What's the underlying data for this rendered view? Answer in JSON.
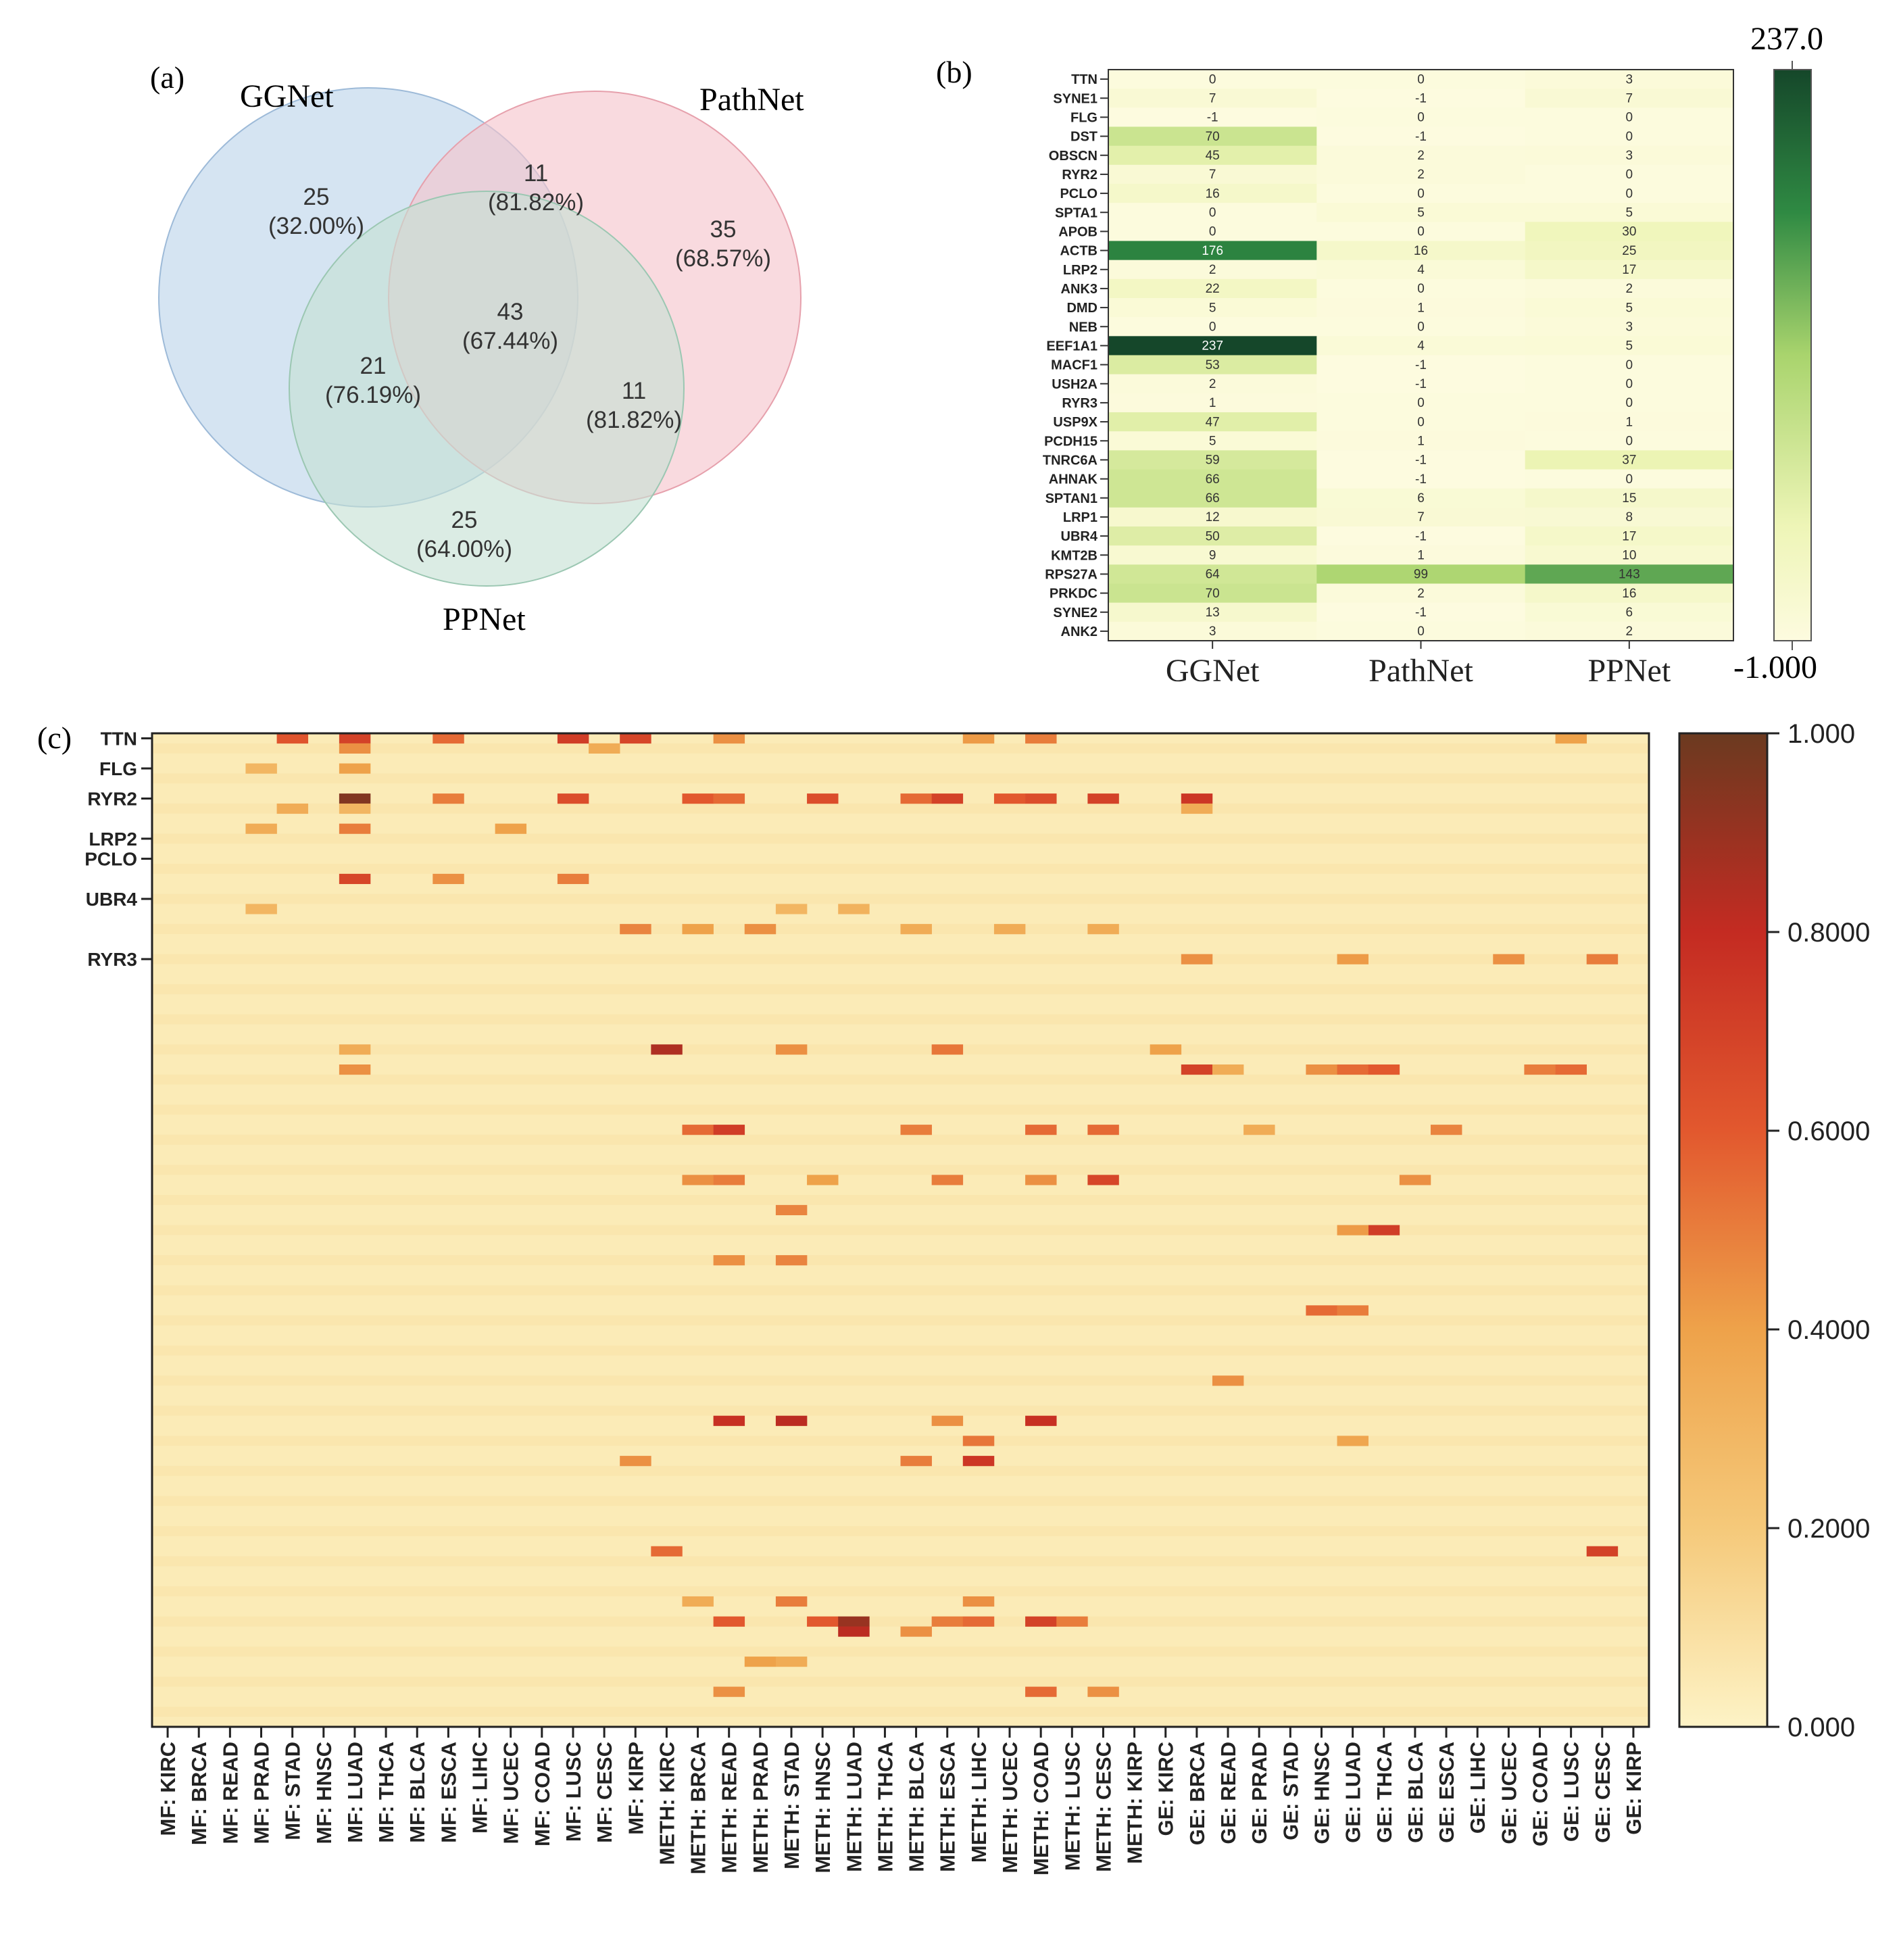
{
  "panels": {
    "a": "(a)",
    "b": "(b)",
    "c": "(c)"
  },
  "chart_data": [
    {
      "type": "venn",
      "sets": [
        {
          "name": "GGNet",
          "color": "#bcd3ea"
        },
        {
          "name": "PathNet",
          "color": "#f5c3cb"
        },
        {
          "name": "PPNet",
          "color": "#c5e0d4"
        }
      ],
      "regions": [
        {
          "count": "25",
          "pct": "(32.00%)"
        },
        {
          "count": "11",
          "pct": "(81.82%)"
        },
        {
          "count": "35",
          "pct": "(68.57%)"
        },
        {
          "count": "43",
          "pct": "(67.44%)"
        },
        {
          "count": "21",
          "pct": "(76.19%)"
        },
        {
          "count": "11",
          "pct": "(81.82%)"
        },
        {
          "count": "25",
          "pct": "(64.00%)"
        }
      ]
    },
    {
      "type": "heatmap",
      "rows": [
        "TTN",
        "SYNE1",
        "FLG",
        "DST",
        "OBSCN",
        "RYR2",
        "PCLO",
        "SPTA1",
        "APOB",
        "ACTB",
        "LRP2",
        "ANK3",
        "DMD",
        "NEB",
        "EEF1A1",
        "MACF1",
        "USH2A",
        "RYR3",
        "USP9X",
        "PCDH15",
        "TNRC6A",
        "AHNAK",
        "SPTAN1",
        "LRP1",
        "UBR4",
        "KMT2B",
        "RPS27A",
        "PRKDC",
        "SYNE2",
        "ANK2"
      ],
      "columns": [
        "GGNet",
        "PathNet",
        "PPNet"
      ],
      "values": [
        [
          0,
          0,
          3
        ],
        [
          7,
          -1,
          7
        ],
        [
          -1,
          0,
          0
        ],
        [
          70,
          -1,
          0
        ],
        [
          45,
          2,
          3
        ],
        [
          7,
          2,
          0
        ],
        [
          16,
          0,
          0
        ],
        [
          0,
          5,
          5
        ],
        [
          0,
          0,
          30
        ],
        [
          176,
          16,
          25
        ],
        [
          2,
          4,
          17
        ],
        [
          22,
          0,
          2
        ],
        [
          5,
          1,
          5
        ],
        [
          0,
          0,
          3
        ],
        [
          237,
          4,
          5
        ],
        [
          53,
          -1,
          0
        ],
        [
          2,
          -1,
          0
        ],
        [
          1,
          0,
          0
        ],
        [
          47,
          0,
          1
        ],
        [
          5,
          1,
          0
        ],
        [
          59,
          -1,
          37
        ],
        [
          66,
          -1,
          0
        ],
        [
          66,
          6,
          15
        ],
        [
          12,
          7,
          8
        ],
        [
          50,
          -1,
          17
        ],
        [
          9,
          1,
          10
        ],
        [
          64,
          99,
          143
        ],
        [
          70,
          2,
          16
        ],
        [
          13,
          -1,
          6
        ],
        [
          3,
          0,
          2
        ]
      ],
      "colorbar": {
        "max": 237.0,
        "min": -1.0,
        "max_label": "237.0",
        "min_label": "-1.000",
        "low_color": "#fdfbdf",
        "mid_color": "#a9d46d",
        "high_color": "#15472a"
      }
    },
    {
      "type": "heatmap",
      "columns": [
        "MF: KIRC",
        "MF: BRCA",
        "MF: READ",
        "MF: PRAD",
        "MF: STAD",
        "MF: HNSC",
        "MF: LUAD",
        "MF: THCA",
        "MF: BLCA",
        "MF: ESCA",
        "MF: LIHC",
        "MF: UCEC",
        "MF: COAD",
        "MF: LUSC",
        "MF: CESC",
        "MF: KIRP",
        "METH: KIRC",
        "METH: BRCA",
        "METH: READ",
        "METH: PRAD",
        "METH: STAD",
        "METH: HNSC",
        "METH: LUAD",
        "METH: THCA",
        "METH: BLCA",
        "METH: ESCA",
        "METH: LIHC",
        "METH: UCEC",
        "METH: COAD",
        "METH: LUSC",
        "METH: CESC",
        "METH: KIRP",
        "GE: KIRC",
        "GE: BRCA",
        "GE: READ",
        "GE: PRAD",
        "GE: STAD",
        "GE: HNSC",
        "GE: LUAD",
        "GE: THCA",
        "GE: BLCA",
        "GE: ESCA",
        "GE: LIHC",
        "GE: UCEC",
        "GE: COAD",
        "GE: LUSC",
        "GE: CESC",
        "GE: KIRP"
      ],
      "n_rows": 99,
      "labeled_rows": [
        {
          "label": "TTN",
          "row": 0
        },
        {
          "label": "FLG",
          "row": 3
        },
        {
          "label": "RYR2",
          "row": 6
        },
        {
          "label": "LRP2",
          "row": 10
        },
        {
          "label": "PCLO",
          "row": 12
        },
        {
          "label": "UBR4",
          "row": 16
        },
        {
          "label": "RYR3",
          "row": 22
        }
      ],
      "hot_cells": [
        [
          0,
          4,
          0.62
        ],
        [
          0,
          6,
          0.7
        ],
        [
          0,
          9,
          0.55
        ],
        [
          0,
          13,
          0.72
        ],
        [
          0,
          15,
          0.68
        ],
        [
          0,
          18,
          0.45
        ],
        [
          0,
          28,
          0.5
        ],
        [
          0,
          26,
          0.42
        ],
        [
          0,
          45,
          0.4
        ],
        [
          1,
          6,
          0.45
        ],
        [
          1,
          14,
          0.35
        ],
        [
          3,
          6,
          0.4
        ],
        [
          3,
          3,
          0.3
        ],
        [
          6,
          6,
          0.95
        ],
        [
          6,
          9,
          0.5
        ],
        [
          6,
          13,
          0.65
        ],
        [
          6,
          17,
          0.6
        ],
        [
          6,
          18,
          0.55
        ],
        [
          6,
          21,
          0.65
        ],
        [
          6,
          24,
          0.55
        ],
        [
          6,
          25,
          0.7
        ],
        [
          6,
          27,
          0.6
        ],
        [
          6,
          28,
          0.65
        ],
        [
          6,
          30,
          0.7
        ],
        [
          6,
          33,
          0.75
        ],
        [
          7,
          4,
          0.35
        ],
        [
          7,
          33,
          0.35
        ],
        [
          7,
          6,
          0.3
        ],
        [
          9,
          11,
          0.4
        ],
        [
          9,
          6,
          0.5
        ],
        [
          9,
          3,
          0.35
        ],
        [
          14,
          6,
          0.68
        ],
        [
          14,
          13,
          0.5
        ],
        [
          14,
          9,
          0.45
        ],
        [
          17,
          3,
          0.3
        ],
        [
          17,
          20,
          0.3
        ],
        [
          17,
          22,
          0.32
        ],
        [
          19,
          15,
          0.48
        ],
        [
          19,
          17,
          0.4
        ],
        [
          19,
          19,
          0.45
        ],
        [
          19,
          24,
          0.35
        ],
        [
          19,
          27,
          0.35
        ],
        [
          19,
          30,
          0.35
        ],
        [
          22,
          33,
          0.45
        ],
        [
          22,
          38,
          0.42
        ],
        [
          22,
          43,
          0.45
        ],
        [
          22,
          46,
          0.5
        ],
        [
          31,
          16,
          0.85
        ],
        [
          31,
          20,
          0.45
        ],
        [
          31,
          25,
          0.52
        ],
        [
          31,
          32,
          0.4
        ],
        [
          31,
          6,
          0.35
        ],
        [
          33,
          33,
          0.7
        ],
        [
          33,
          34,
          0.35
        ],
        [
          33,
          37,
          0.45
        ],
        [
          33,
          38,
          0.55
        ],
        [
          33,
          39,
          0.6
        ],
        [
          33,
          44,
          0.5
        ],
        [
          33,
          45,
          0.55
        ],
        [
          33,
          6,
          0.45
        ],
        [
          39,
          17,
          0.55
        ],
        [
          39,
          18,
          0.72
        ],
        [
          39,
          24,
          0.5
        ],
        [
          39,
          28,
          0.55
        ],
        [
          39,
          30,
          0.55
        ],
        [
          39,
          35,
          0.35
        ],
        [
          39,
          41,
          0.48
        ],
        [
          44,
          17,
          0.45
        ],
        [
          44,
          18,
          0.5
        ],
        [
          44,
          21,
          0.4
        ],
        [
          44,
          25,
          0.5
        ],
        [
          44,
          28,
          0.45
        ],
        [
          44,
          30,
          0.68
        ],
        [
          44,
          40,
          0.45
        ],
        [
          47,
          20,
          0.48
        ],
        [
          49,
          39,
          0.72
        ],
        [
          49,
          38,
          0.42
        ],
        [
          52,
          20,
          0.48
        ],
        [
          52,
          18,
          0.45
        ],
        [
          57,
          37,
          0.55
        ],
        [
          57,
          38,
          0.5
        ],
        [
          64,
          34,
          0.45
        ],
        [
          68,
          18,
          0.78
        ],
        [
          68,
          20,
          0.82
        ],
        [
          68,
          28,
          0.78
        ],
        [
          68,
          25,
          0.45
        ],
        [
          70,
          26,
          0.52
        ],
        [
          70,
          38,
          0.38
        ],
        [
          72,
          26,
          0.75
        ],
        [
          72,
          24,
          0.5
        ],
        [
          72,
          15,
          0.45
        ],
        [
          81,
          16,
          0.55
        ],
        [
          81,
          46,
          0.7
        ],
        [
          86,
          26,
          0.45
        ],
        [
          86,
          20,
          0.5
        ],
        [
          86,
          17,
          0.35
        ],
        [
          88,
          18,
          0.6
        ],
        [
          88,
          21,
          0.6
        ],
        [
          88,
          22,
          0.9
        ],
        [
          88,
          25,
          0.5
        ],
        [
          88,
          26,
          0.55
        ],
        [
          88,
          28,
          0.7
        ],
        [
          88,
          29,
          0.5
        ],
        [
          89,
          22,
          0.82
        ],
        [
          89,
          24,
          0.45
        ],
        [
          92,
          19,
          0.4
        ],
        [
          92,
          20,
          0.35
        ],
        [
          95,
          18,
          0.45
        ],
        [
          95,
          28,
          0.55
        ],
        [
          95,
          30,
          0.45
        ]
      ],
      "colorbar": {
        "min": 0.0,
        "max": 1.0,
        "ticks": [
          {
            "value": 1.0,
            "label": "1.000"
          },
          {
            "value": 0.8,
            "label": "0.8000"
          },
          {
            "value": 0.6,
            "label": "0.6000"
          },
          {
            "value": 0.4,
            "label": "0.4000"
          },
          {
            "value": 0.2,
            "label": "0.2000"
          },
          {
            "value": 0.0,
            "label": "0.000"
          }
        ]
      }
    }
  ]
}
